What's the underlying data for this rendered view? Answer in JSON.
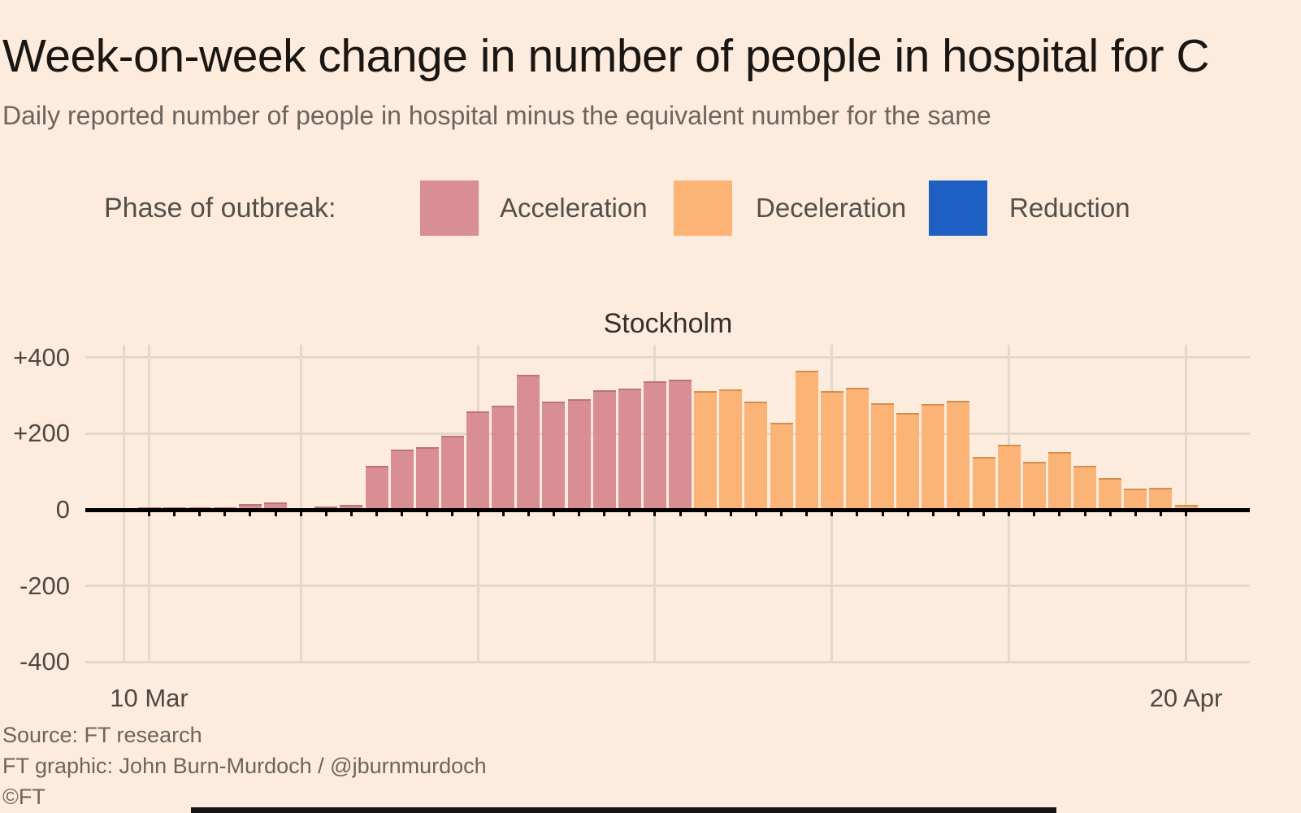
{
  "header": {
    "title": "Week-on-week change in number of people in hospital for C",
    "subtitle": "Daily reported number of people in hospital minus the equivalent number for the same"
  },
  "legend": {
    "label": "Phase of outbreak:",
    "items": [
      {
        "label": "Acceleration",
        "phase": "acceleration",
        "color": "#d98e94"
      },
      {
        "label": "Deceleration",
        "phase": "deceleration",
        "color": "#fbb376"
      },
      {
        "label": "Reduction",
        "phase": "reduction",
        "color": "#1d5fc2"
      }
    ]
  },
  "chart_data": {
    "type": "bar",
    "title": "Stockholm",
    "xlabel": "",
    "ylabel": "",
    "grid": true,
    "ylim": [
      -430,
      430
    ],
    "y_ticks": [
      {
        "value": 400,
        "label": "+400"
      },
      {
        "value": 200,
        "label": "+200"
      },
      {
        "value": 0,
        "label": "0"
      },
      {
        "value": -200,
        "label": "-200"
      },
      {
        "value": -400,
        "label": "-400"
      }
    ],
    "x_tick_labels": [
      {
        "label": "10 Mar",
        "day_index": 0
      },
      {
        "label": "20 Apr",
        "day_index": 41
      }
    ],
    "x_gridline_day_indices": [
      -1,
      0,
      6,
      13,
      20,
      27,
      34,
      41
    ],
    "phase_colors": {
      "acceleration": {
        "fill": "#d98e94",
        "edge": "#b9737d"
      },
      "deceleration": {
        "fill": "#fbb376",
        "edge": "#d28f52"
      },
      "reduction": {
        "fill": "#1d5fc2",
        "edge": "#164a9e"
      }
    },
    "bars": [
      {
        "date": "10 Mar",
        "value": 6,
        "phase": "acceleration"
      },
      {
        "date": "11 Mar",
        "value": 6,
        "phase": "acceleration"
      },
      {
        "date": "12 Mar",
        "value": 6,
        "phase": "acceleration"
      },
      {
        "date": "13 Mar",
        "value": 6,
        "phase": "acceleration"
      },
      {
        "date": "14 Mar",
        "value": 15,
        "phase": "acceleration"
      },
      {
        "date": "15 Mar",
        "value": 20,
        "phase": "acceleration"
      },
      {
        "date": "16 Mar",
        "value": 0,
        "phase": "acceleration"
      },
      {
        "date": "17 Mar",
        "value": 8,
        "phase": "acceleration"
      },
      {
        "date": "18 Mar",
        "value": 12,
        "phase": "acceleration"
      },
      {
        "date": "19 Mar",
        "value": 115,
        "phase": "acceleration"
      },
      {
        "date": "20 Mar",
        "value": 157,
        "phase": "acceleration"
      },
      {
        "date": "21 Mar",
        "value": 164,
        "phase": "acceleration"
      },
      {
        "date": "22 Mar",
        "value": 194,
        "phase": "acceleration"
      },
      {
        "date": "23 Mar",
        "value": 258,
        "phase": "acceleration"
      },
      {
        "date": "24 Mar",
        "value": 274,
        "phase": "acceleration"
      },
      {
        "date": "25 Mar",
        "value": 355,
        "phase": "acceleration"
      },
      {
        "date": "26 Mar",
        "value": 283,
        "phase": "acceleration"
      },
      {
        "date": "27 Mar",
        "value": 291,
        "phase": "acceleration"
      },
      {
        "date": "28 Mar",
        "value": 314,
        "phase": "acceleration"
      },
      {
        "date": "29 Mar",
        "value": 319,
        "phase": "acceleration"
      },
      {
        "date": "30 Mar",
        "value": 338,
        "phase": "acceleration"
      },
      {
        "date": "31 Mar",
        "value": 342,
        "phase": "acceleration"
      },
      {
        "date": "1 Apr",
        "value": 312,
        "phase": "deceleration"
      },
      {
        "date": "2 Apr",
        "value": 315,
        "phase": "deceleration"
      },
      {
        "date": "3 Apr",
        "value": 284,
        "phase": "deceleration"
      },
      {
        "date": "4 Apr",
        "value": 228,
        "phase": "deceleration"
      },
      {
        "date": "5 Apr",
        "value": 365,
        "phase": "deceleration"
      },
      {
        "date": "6 Apr",
        "value": 312,
        "phase": "deceleration"
      },
      {
        "date": "7 Apr",
        "value": 320,
        "phase": "deceleration"
      },
      {
        "date": "8 Apr",
        "value": 280,
        "phase": "deceleration"
      },
      {
        "date": "9 Apr",
        "value": 255,
        "phase": "deceleration"
      },
      {
        "date": "10 Apr",
        "value": 277,
        "phase": "deceleration"
      },
      {
        "date": "11 Apr",
        "value": 285,
        "phase": "deceleration"
      },
      {
        "date": "12 Apr",
        "value": 138,
        "phase": "deceleration"
      },
      {
        "date": "13 Apr",
        "value": 170,
        "phase": "deceleration"
      },
      {
        "date": "14 Apr",
        "value": 127,
        "phase": "deceleration"
      },
      {
        "date": "15 Apr",
        "value": 152,
        "phase": "deceleration"
      },
      {
        "date": "16 Apr",
        "value": 116,
        "phase": "deceleration"
      },
      {
        "date": "17 Apr",
        "value": 83,
        "phase": "deceleration"
      },
      {
        "date": "18 Apr",
        "value": 56,
        "phase": "deceleration"
      },
      {
        "date": "19 Apr",
        "value": 58,
        "phase": "deceleration"
      },
      {
        "date": "20 Apr",
        "value": 13,
        "phase": "deceleration"
      }
    ]
  },
  "footer": {
    "source": "Source: FT research",
    "credit": "FT graphic: John Burn-Murdoch / @jburnmurdoch",
    "copyright": "©FT"
  }
}
